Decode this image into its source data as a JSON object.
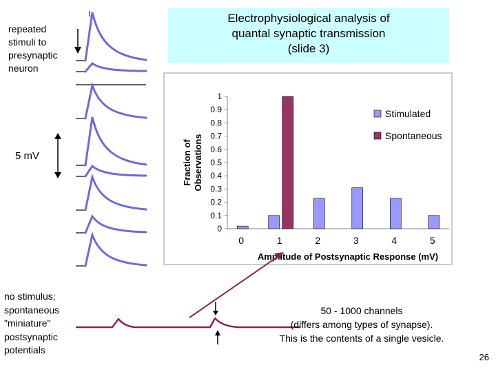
{
  "slide": {
    "title_lines": [
      "Electrophysiological analysis of",
      "quantal synaptic transmission",
      "(slide 3)"
    ],
    "stimulus_label_lines": [
      "repeated",
      "stimuli to",
      "presynaptic",
      "neuron"
    ],
    "scale_bar_label": "5 mV",
    "spontaneous_label_lines": [
      "no stimulus;",
      "spontaneous",
      "\"miniature\"",
      "postsynaptic",
      "potentials"
    ],
    "note_lines": [
      "50 - 1000 channels",
      "(differs among types of synapse).",
      "This is the contents of a single vesicle."
    ],
    "page_number": "26",
    "colors": {
      "trace": "#6b6bdb",
      "miniature_trace": "#8b2252",
      "arrow": "#8b2252"
    }
  },
  "chart_data": {
    "type": "bar",
    "xlabel": "Amplitude of Postsynaptic Response (mV)",
    "ylabel": "Fraction of Observations",
    "x_ticks": [
      "0",
      "1",
      "2",
      "3",
      "4",
      "5"
    ],
    "y_ticks": [
      "0",
      "0.1",
      "0.2",
      "0.3",
      "0.4",
      "0.5",
      "0.6",
      "0.7",
      "0.8",
      "0.9",
      "1"
    ],
    "ylim": [
      0,
      1
    ],
    "legend_position": "right",
    "series": [
      {
        "name": "Stimulated",
        "color": "#9999ff",
        "x": [
          0,
          1,
          2,
          3,
          4,
          5
        ],
        "values": [
          0.02,
          0.1,
          0.23,
          0.31,
          0.23,
          0.1
        ]
      },
      {
        "name": "Spontaneous",
        "color": "#993366",
        "x": [
          1
        ],
        "values": [
          1.0
        ]
      }
    ]
  }
}
